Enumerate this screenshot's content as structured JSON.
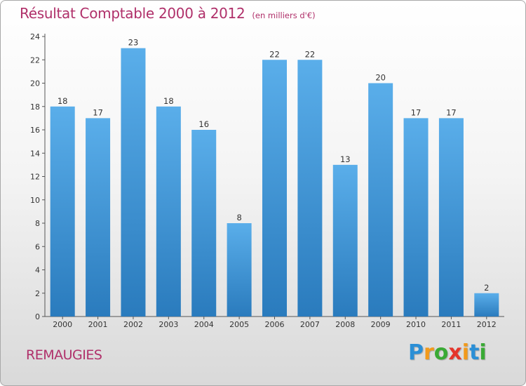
{
  "chart_data": {
    "type": "bar",
    "title": "Résultat Comptable 2000 à 2012",
    "subtitle": "(en milliers d'€)",
    "categories": [
      "2000",
      "2001",
      "2002",
      "2003",
      "2004",
      "2005",
      "2006",
      "2007",
      "2008",
      "2009",
      "2010",
      "2011",
      "2012"
    ],
    "values": [
      18,
      17,
      23,
      18,
      16,
      8,
      22,
      22,
      13,
      20,
      17,
      17,
      2
    ],
    "xlabel": "",
    "ylabel": "",
    "ylim": [
      0,
      24
    ],
    "yticks": [
      0,
      2,
      4,
      6,
      8,
      10,
      12,
      14,
      16,
      18,
      20,
      22,
      24
    ],
    "grid": false,
    "bar_color_top": "#5aaeea",
    "bar_color_bottom": "#2a7bbd"
  },
  "location": "REMAUGIES",
  "logo": {
    "letters": [
      "P",
      "r",
      "o",
      "x",
      "i",
      "t",
      "i"
    ],
    "colors": [
      "#2b8fd6",
      "#f29a1b",
      "#3aaa35",
      "#e5352b",
      "#f29a1b",
      "#2b8fd6",
      "#3aaa35"
    ]
  },
  "colors": {
    "accent": "#b0306a"
  }
}
